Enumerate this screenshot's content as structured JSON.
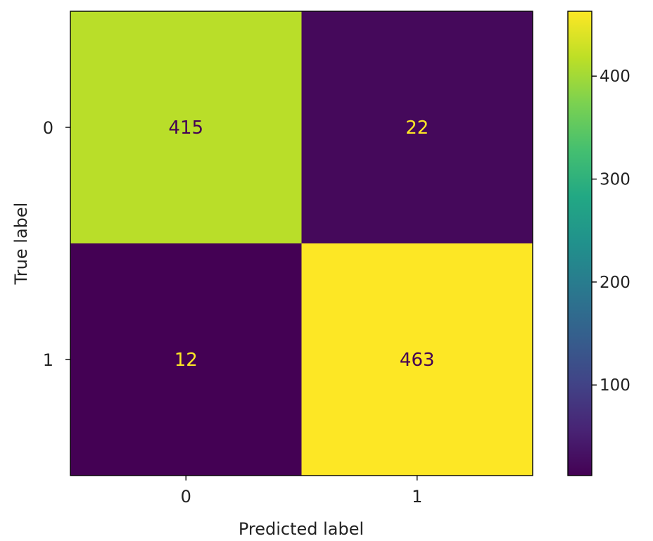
{
  "chart_data": {
    "type": "heatmap",
    "title": "",
    "xlabel": "Predicted label",
    "ylabel": "True label",
    "x_categories": [
      "0",
      "1"
    ],
    "y_categories": [
      "0",
      "1"
    ],
    "values": [
      [
        415,
        22
      ],
      [
        12,
        463
      ]
    ],
    "colorbar": {
      "min": 12,
      "max": 463,
      "ticks": [
        100,
        200,
        300,
        400
      ],
      "colormap": "viridis"
    },
    "colors": {
      "low": "#440154",
      "high": "#fde725",
      "text_on_dark": "#fde725",
      "text_on_light": "#440154"
    }
  }
}
